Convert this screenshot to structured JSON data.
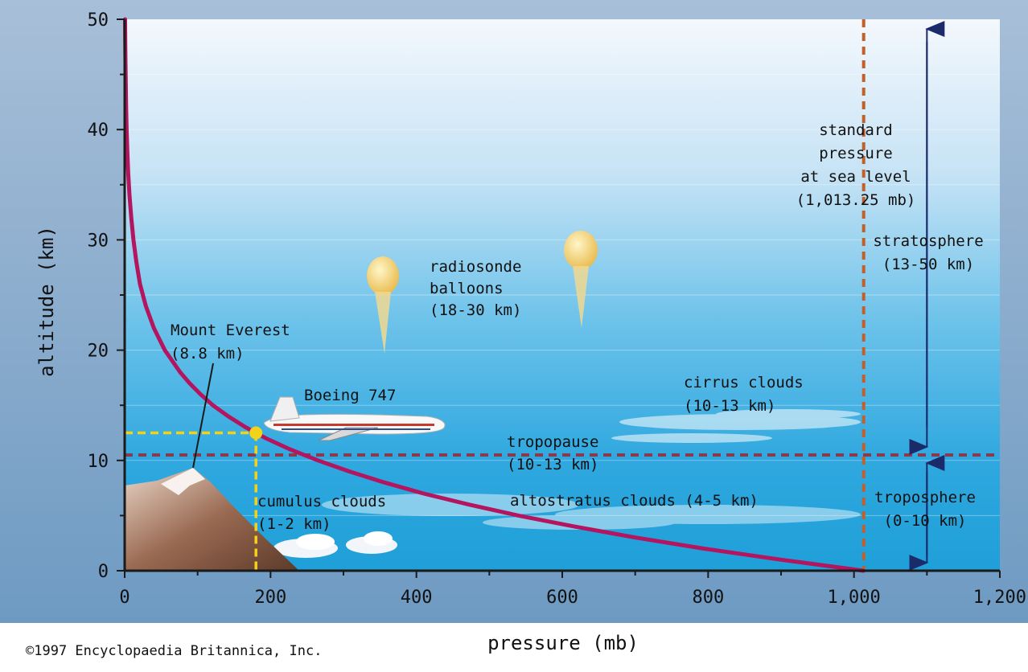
{
  "chart_data": {
    "type": "line",
    "title": "",
    "xlabel": "pressure (mb)",
    "ylabel": "altitude (km)",
    "xlim": [
      0,
      1200
    ],
    "ylim": [
      0,
      50
    ],
    "x_ticks": [
      "0",
      "200",
      "400",
      "600",
      "800",
      "1,000",
      "1,200"
    ],
    "y_ticks": [
      "0",
      "10",
      "20",
      "30",
      "40",
      "50"
    ],
    "series": [
      {
        "name": "",
        "color": "#b3155f",
        "points": [
          {
            "x": 1013,
            "y": 0
          },
          {
            "x": 900,
            "y": 1
          },
          {
            "x": 795,
            "y": 2
          },
          {
            "x": 701,
            "y": 3
          },
          {
            "x": 617,
            "y": 4
          },
          {
            "x": 540,
            "y": 5
          },
          {
            "x": 472,
            "y": 6
          },
          {
            "x": 410,
            "y": 7
          },
          {
            "x": 356,
            "y": 8
          },
          {
            "x": 308,
            "y": 9
          },
          {
            "x": 265,
            "y": 10
          },
          {
            "x": 227,
            "y": 11
          },
          {
            "x": 194,
            "y": 12
          },
          {
            "x": 166,
            "y": 13
          },
          {
            "x": 142,
            "y": 14
          },
          {
            "x": 121,
            "y": 15
          },
          {
            "x": 104,
            "y": 16
          },
          {
            "x": 89,
            "y": 17
          },
          {
            "x": 76,
            "y": 18
          },
          {
            "x": 55,
            "y": 20
          },
          {
            "x": 40,
            "y": 22
          },
          {
            "x": 29,
            "y": 24
          },
          {
            "x": 21,
            "y": 26
          },
          {
            "x": 16,
            "y": 28
          },
          {
            "x": 12,
            "y": 30
          },
          {
            "x": 9,
            "y": 32
          },
          {
            "x": 6.6,
            "y": 34
          },
          {
            "x": 4.8,
            "y": 36
          },
          {
            "x": 3.6,
            "y": 38
          },
          {
            "x": 2.7,
            "y": 40
          },
          {
            "x": 2.0,
            "y": 42
          },
          {
            "x": 1.5,
            "y": 44
          },
          {
            "x": 1.1,
            "y": 46
          },
          {
            "x": 0.8,
            "y": 48
          },
          {
            "x": 0.6,
            "y": 50
          }
        ]
      }
    ],
    "reference_lines": [
      {
        "orientation": "vertical",
        "x": 1013.25,
        "color": "#c0602a"
      },
      {
        "orientation": "horizontal",
        "y": 10.5,
        "color": "#8a3a4a"
      }
    ],
    "marker": {
      "x": 180,
      "y": 12.5,
      "color": "#f2d21b"
    },
    "annotations": {
      "standard_pressure": [
        "standard",
        "pressure",
        "at sea level",
        "(1,013.25 mb)"
      ],
      "stratosphere": [
        "stratosphere",
        "(13-50 km)"
      ],
      "troposphere": [
        "troposphere",
        "(0-10 km)"
      ],
      "radiosonde": [
        "radiosonde",
        "balloons",
        "(18-30 km)"
      ],
      "everest": [
        "Mount Everest",
        "(8.8 km)"
      ],
      "boeing": "Boeing 747",
      "cirrus": [
        "cirrus clouds",
        "(10-13 km)"
      ],
      "tropopause": [
        "tropopause",
        "(10-13 km)"
      ],
      "cumulus": [
        "cumulus clouds",
        "(1-2 km)"
      ],
      "altostratus": "altostratus clouds (4-5 km)"
    },
    "colors": {
      "sky_top": "#f4f8fd",
      "sky_mid": "#a9d6f0",
      "sky_low": "#2aa6dd",
      "axis_band": "#8fb0cf",
      "curve": "#b3155f",
      "arrow": "#1b2a6b"
    }
  },
  "copyright": "©1997 Encyclopaedia Britannica, Inc."
}
